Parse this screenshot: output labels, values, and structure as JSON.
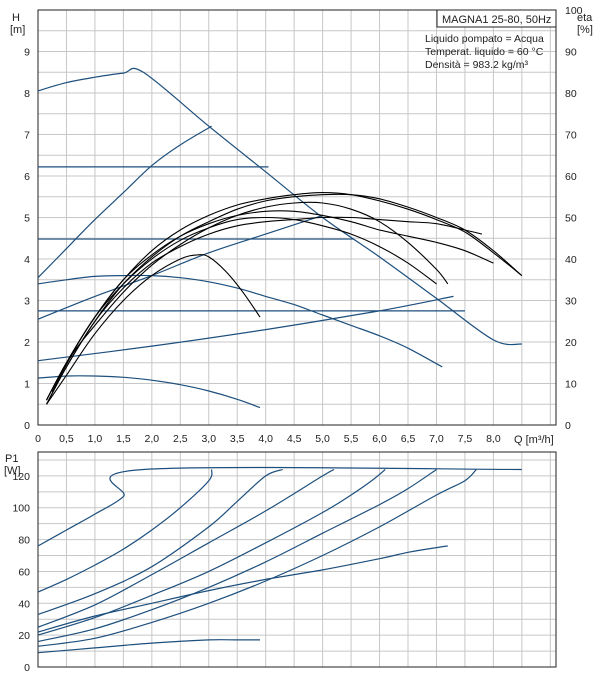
{
  "chart_data": [
    {
      "type": "line",
      "title": "MAGNA1 25-80, 50Hz",
      "info_lines": [
        "Liquido pompato = Acqua",
        "Temperat. liquido = 60 °C",
        "Densità = 983.2 kg/m³"
      ],
      "xlabel": "Q [m³/h]",
      "ylabel": "H",
      "ylabel_unit": "[m]",
      "y2label": "eta",
      "y2label_unit": "[%]",
      "xlim": [
        0,
        9.1
      ],
      "ylim": [
        0,
        10
      ],
      "y2lim": [
        0,
        100
      ],
      "xticks": [
        0,
        0.5,
        1,
        1.5,
        2,
        2.5,
        3,
        3.5,
        4,
        4.5,
        5,
        5.5,
        6,
        6.5,
        7,
        7.5,
        8
      ],
      "xticklabels": [
        "0",
        "0,5",
        "1,0",
        "1,5",
        "2,0",
        "2,5",
        "3,0",
        "3,5",
        "4,0",
        "4,5",
        "5,0",
        "5,5",
        "6,0",
        "6,5",
        "7,0",
        "7,5",
        "8,0"
      ],
      "yticks": [
        0,
        1,
        2,
        3,
        4,
        5,
        6,
        7,
        8,
        9
      ],
      "y2ticks": [
        0,
        10,
        20,
        30,
        40,
        50,
        60,
        70,
        80,
        90,
        100
      ],
      "grid": true,
      "series_head_blue": [
        {
          "values": [
            [
              0,
              8.05
            ],
            [
              0.5,
              8.25
            ],
            [
              1.0,
              8.38
            ],
            [
              1.5,
              8.48
            ],
            [
              1.85,
              8.5
            ],
            [
              3.0,
              7.2
            ],
            [
              4.0,
              6.1
            ],
            [
              5.0,
              5.0
            ],
            [
              6.0,
              4.05
            ],
            [
              7.0,
              3.05
            ],
            [
              8.0,
              2.05
            ],
            [
              8.5,
              1.95
            ]
          ]
        },
        {
          "values": [
            [
              0,
              3.55
            ],
            [
              0.5,
              4.25
            ],
            [
              1.0,
              4.95
            ],
            [
              1.5,
              5.6
            ],
            [
              2.0,
              6.25
            ],
            [
              2.5,
              6.75
            ],
            [
              3.05,
              7.2
            ]
          ]
        },
        {
          "values": [
            [
              0,
              6.22
            ],
            [
              4.05,
              6.22
            ]
          ]
        },
        {
          "values": [
            [
              0,
              2.55
            ],
            [
              1.0,
              3.1
            ],
            [
              2.0,
              3.6
            ],
            [
              3.0,
              4.15
            ],
            [
              4.0,
              4.6
            ],
            [
              5.0,
              5.05
            ]
          ]
        },
        {
          "values": [
            [
              0,
              4.48
            ],
            [
              5.55,
              4.48
            ]
          ]
        },
        {
          "values": [
            [
              0,
              1.55
            ],
            [
              2.0,
              1.9
            ],
            [
              4.0,
              2.3
            ],
            [
              6.0,
              2.75
            ],
            [
              7.3,
              3.1
            ]
          ]
        },
        {
          "values": [
            [
              0,
              2.75
            ],
            [
              7.5,
              2.75
            ]
          ]
        },
        {
          "values": [
            [
              0,
              3.4
            ],
            [
              0.5,
              3.5
            ],
            [
              1.0,
              3.58
            ],
            [
              1.5,
              3.6
            ],
            [
              2.0,
              3.6
            ],
            [
              2.5,
              3.55
            ],
            [
              3.0,
              3.45
            ],
            [
              3.5,
              3.3
            ],
            [
              4.0,
              3.1
            ],
            [
              4.5,
              2.9
            ],
            [
              5.0,
              2.65
            ],
            [
              5.5,
              2.4
            ],
            [
              6.0,
              2.15
            ],
            [
              6.5,
              1.85
            ],
            [
              7.1,
              1.4
            ]
          ]
        },
        {
          "values": [
            [
              0,
              1.13
            ],
            [
              0.5,
              1.18
            ],
            [
              1.0,
              1.18
            ],
            [
              1.5,
              1.15
            ],
            [
              2.0,
              1.08
            ],
            [
              2.5,
              0.97
            ],
            [
              3.0,
              0.82
            ],
            [
              3.5,
              0.62
            ],
            [
              3.9,
              0.42
            ]
          ]
        }
      ],
      "series_eta_black": [
        {
          "values": [
            [
              0.15,
              5
            ],
            [
              0.5,
              12
            ],
            [
              1.0,
              22
            ],
            [
              1.5,
              30
            ],
            [
              2.0,
              36
            ],
            [
              2.5,
              40
            ],
            [
              2.8,
              41
            ],
            [
              3.0,
              40.5
            ],
            [
              3.3,
              37
            ],
            [
              3.6,
              32
            ],
            [
              3.9,
              26
            ]
          ]
        },
        {
          "values": [
            [
              0.15,
              6
            ],
            [
              0.5,
              15
            ],
            [
              1.0,
              26
            ],
            [
              1.5,
              34
            ],
            [
              2.0,
              40
            ],
            [
              2.5,
              44.5
            ],
            [
              3.0,
              47.5
            ],
            [
              3.5,
              49.5
            ],
            [
              4.0,
              50
            ],
            [
              4.5,
              49.5
            ],
            [
              5.0,
              48
            ],
            [
              5.5,
              46
            ],
            [
              6.0,
              43
            ],
            [
              6.5,
              39
            ],
            [
              7.0,
              34
            ]
          ]
        },
        {
          "values": [
            [
              0.15,
              6
            ],
            [
              0.5,
              15
            ],
            [
              1.0,
              26
            ],
            [
              1.5,
              35
            ],
            [
              2.0,
              41
            ],
            [
              2.5,
              45.5
            ],
            [
              3.0,
              48.5
            ],
            [
              3.5,
              50.5
            ],
            [
              4.0,
              51.5
            ],
            [
              4.5,
              51.5
            ],
            [
              5.0,
              50.5
            ],
            [
              5.5,
              49
            ],
            [
              6.0,
              47
            ],
            [
              6.5,
              45.5
            ],
            [
              7.0,
              44
            ],
            [
              7.5,
              42
            ],
            [
              8.0,
              39
            ]
          ]
        },
        {
          "values": [
            [
              0.15,
              5
            ],
            [
              0.5,
              14
            ],
            [
              1.0,
              25
            ],
            [
              1.5,
              33
            ],
            [
              2.0,
              39
            ],
            [
              2.5,
              43
            ],
            [
              3.0,
              46
            ],
            [
              3.5,
              48
            ],
            [
              4.0,
              49
            ],
            [
              4.5,
              49.5
            ],
            [
              5.0,
              50
            ],
            [
              5.5,
              50
            ],
            [
              6.0,
              49.5
            ],
            [
              6.5,
              49
            ],
            [
              7.0,
              48.5
            ],
            [
              7.5,
              47
            ],
            [
              7.8,
              46
            ]
          ]
        },
        {
          "values": [
            [
              0.15,
              5
            ],
            [
              0.5,
              14
            ],
            [
              1.0,
              25
            ],
            [
              1.5,
              34
            ],
            [
              2.0,
              40.5
            ],
            [
              2.5,
              45.5
            ],
            [
              3.0,
              49
            ],
            [
              3.5,
              52
            ],
            [
              4.0,
              54
            ],
            [
              4.5,
              55
            ],
            [
              5.0,
              55.5
            ],
            [
              5.5,
              55.5
            ],
            [
              6.0,
              54.5
            ],
            [
              6.5,
              52.5
            ],
            [
              7.0,
              50
            ],
            [
              7.5,
              47
            ],
            [
              8.0,
              42
            ],
            [
              8.5,
              36
            ]
          ]
        },
        {
          "values": [
            [
              0.15,
              6
            ],
            [
              0.5,
              15
            ],
            [
              1.0,
              26
            ],
            [
              1.5,
              35
            ],
            [
              2.0,
              42
            ],
            [
              2.5,
              47
            ],
            [
              3.0,
              50.5
            ],
            [
              3.5,
              53
            ],
            [
              4.0,
              54.5
            ],
            [
              4.5,
              55.5
            ],
            [
              5.0,
              56
            ],
            [
              5.5,
              55.5
            ],
            [
              6.0,
              54
            ],
            [
              6.5,
              52
            ],
            [
              7.0,
              49.5
            ],
            [
              7.5,
              46.5
            ],
            [
              8.0,
              41.5
            ],
            [
              8.5,
              36
            ]
          ]
        },
        {
          "values": [
            [
              0.25,
              8
            ],
            [
              0.6,
              17
            ],
            [
              1.0,
              24
            ],
            [
              1.5,
              32
            ],
            [
              2.0,
              38.5
            ],
            [
              2.5,
              43.5
            ],
            [
              3.0,
              47.5
            ],
            [
              3.5,
              50.5
            ],
            [
              4.0,
              52.5
            ],
            [
              4.5,
              53.5
            ],
            [
              5.0,
              53.5
            ],
            [
              5.5,
              52
            ],
            [
              6.0,
              49
            ],
            [
              6.5,
              44
            ],
            [
              7.0,
              37.5
            ],
            [
              7.2,
              34
            ]
          ]
        }
      ],
      "p1_chart": {
        "ylabel": "P1",
        "ylabel_unit": "[W]",
        "ylim": [
          0,
          135
        ],
        "yticks": [
          0,
          20,
          40,
          60,
          80,
          100,
          120
        ],
        "series_p1_blue": [
          {
            "values": [
              [
                0,
                76
              ],
              [
                0.5,
                86
              ],
              [
                1.0,
                96
              ],
              [
                1.5,
                107
              ],
              [
                1.85,
                124
              ],
              [
                8.5,
                124
              ]
            ]
          },
          {
            "values": [
              [
                0,
                47
              ],
              [
                0.5,
                55
              ],
              [
                1.0,
                64
              ],
              [
                1.5,
                74
              ],
              [
                2.0,
                86
              ],
              [
                2.5,
                100
              ],
              [
                3.0,
                117
              ],
              [
                3.05,
                124
              ]
            ]
          },
          {
            "values": [
              [
                0,
                33
              ],
              [
                1.0,
                46
              ],
              [
                2.0,
                63
              ],
              [
                3.0,
                88
              ],
              [
                3.5,
                104
              ],
              [
                4.0,
                120
              ],
              [
                4.3,
                124
              ]
            ]
          },
          {
            "values": [
              [
                0,
                25
              ],
              [
                1.0,
                39
              ],
              [
                2.0,
                58
              ],
              [
                3.0,
                78
              ],
              [
                4.0,
                98
              ],
              [
                5.0,
                120
              ],
              [
                5.2,
                124
              ]
            ]
          },
          {
            "values": [
              [
                0,
                20
              ],
              [
                1.0,
                31
              ],
              [
                2.0,
                45
              ],
              [
                3.0,
                60
              ],
              [
                4.0,
                78
              ],
              [
                5.0,
                97
              ],
              [
                5.5,
                108
              ],
              [
                5.9,
                118
              ],
              [
                6.1,
                124
              ]
            ]
          },
          {
            "values": [
              [
                0,
                16
              ],
              [
                1.0,
                24
              ],
              [
                2.0,
                36
              ],
              [
                3.0,
                50
              ],
              [
                4.0,
                66
              ],
              [
                5.0,
                84
              ],
              [
                6.0,
                102
              ],
              [
                6.5,
                112
              ],
              [
                7.0,
                124
              ]
            ]
          },
          {
            "values": [
              [
                0,
                13
              ],
              [
                1.0,
                18
              ],
              [
                2.0,
                28
              ],
              [
                3.0,
                40
              ],
              [
                4.0,
                54
              ],
              [
                5.0,
                70
              ],
              [
                6.0,
                88
              ],
              [
                7.0,
                108
              ],
              [
                7.5,
                117
              ],
              [
                7.7,
                124
              ]
            ]
          },
          {
            "values": [
              [
                0,
                22
              ],
              [
                1.0,
                32
              ],
              [
                2.0,
                40
              ],
              [
                3.0,
                48
              ],
              [
                4.0,
                55
              ],
              [
                5.0,
                61
              ],
              [
                6.0,
                68
              ],
              [
                6.5,
                72
              ],
              [
                7.0,
                75
              ],
              [
                7.2,
                76
              ]
            ]
          },
          {
            "values": [
              [
                0,
                9
              ],
              [
                1.0,
                12
              ],
              [
                2.0,
                15
              ],
              [
                3.0,
                17
              ],
              [
                3.5,
                17
              ],
              [
                3.9,
                17
              ]
            ]
          }
        ]
      },
      "colors": {
        "head": "#1d4f7d",
        "eta": "#000000",
        "grid": "#c7c7c7",
        "axis": "#222222"
      }
    }
  ]
}
